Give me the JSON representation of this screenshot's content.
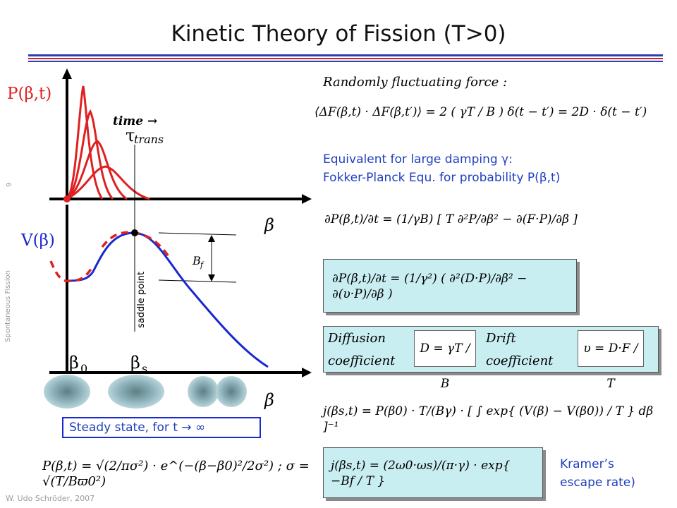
{
  "title": "Kinetic Theory of Fission (T>0)",
  "side_labels": {
    "page_number": "9",
    "topic": "Spontaneous Fission",
    "author": "W. Udo Schröder, 2007"
  },
  "colors": {
    "title_rule_blue": "#2b3fb5",
    "title_rule_red": "#d42020",
    "curve_red": "#e02020",
    "curve_blue": "#1a28d0",
    "box_fill": "#c9eef2",
    "text_blue": "#1f3fbf"
  },
  "plot": {
    "p_axis_label": "P(β,t)",
    "v_axis_label": "V(β)",
    "beta_label_upper": "β",
    "beta_label_lower": "β",
    "time_label": "time →",
    "tau_label": "τ",
    "tau_sub": "trans",
    "bf_label": "B",
    "bf_sub": "f",
    "saddle_label": "saddle point",
    "beta0_label": "β",
    "beta0_sub": "0",
    "betas_label": "β",
    "betas_sub": "s",
    "steady_state": "Steady state, for t → ∞"
  },
  "right": {
    "random_force_heading": "Randomly fluctuating force :",
    "random_force_eq": "⟨ΔF(β,t) · ΔF(β,t′)⟩ = 2 ( γT / B ) δ(t − t′) = 2D · δ(t − t′)",
    "equivalent_line1": "Equivalent for large damping γ:",
    "equivalent_line2": "Fokker-Planck Equ. for probability P(β,t)",
    "fp_eq1": "∂P(β,t)/∂t = (1/γB) [ T ∂²P/∂β² − ∂(F·P)/∂β ]",
    "fp_eq2": "∂P(β,t)/∂t = (1/γ²) ( ∂²(D·P)/∂β² − ∂(υ·P)/∂β )",
    "diffusion_word1": "Diffusion",
    "diffusion_word2": "coefficient",
    "diffusion_eq": "D = γT / B",
    "drift_word1": "Drift",
    "drift_word2": "coefficient",
    "drift_eq": "υ = D·F / T",
    "flux_eq": "j(βs,t) = P(β0) · T/(Bγ) · [ ∫ exp{ (V(β) − V(β0)) / T } dβ ]⁻¹",
    "kramer_eq": "j(βs,t) = (2ω0·ωs)/(π·γ) · exp{ −Bf / T }",
    "kramer_label_line1": "Kramer’s",
    "kramer_label_line2": "escape rate)",
    "gauss_eq": "P(β,t) = √(2/πσ²) · e^(−(β−β0)²/2σ²) ;  σ = √(T/Bϖ0²)"
  }
}
